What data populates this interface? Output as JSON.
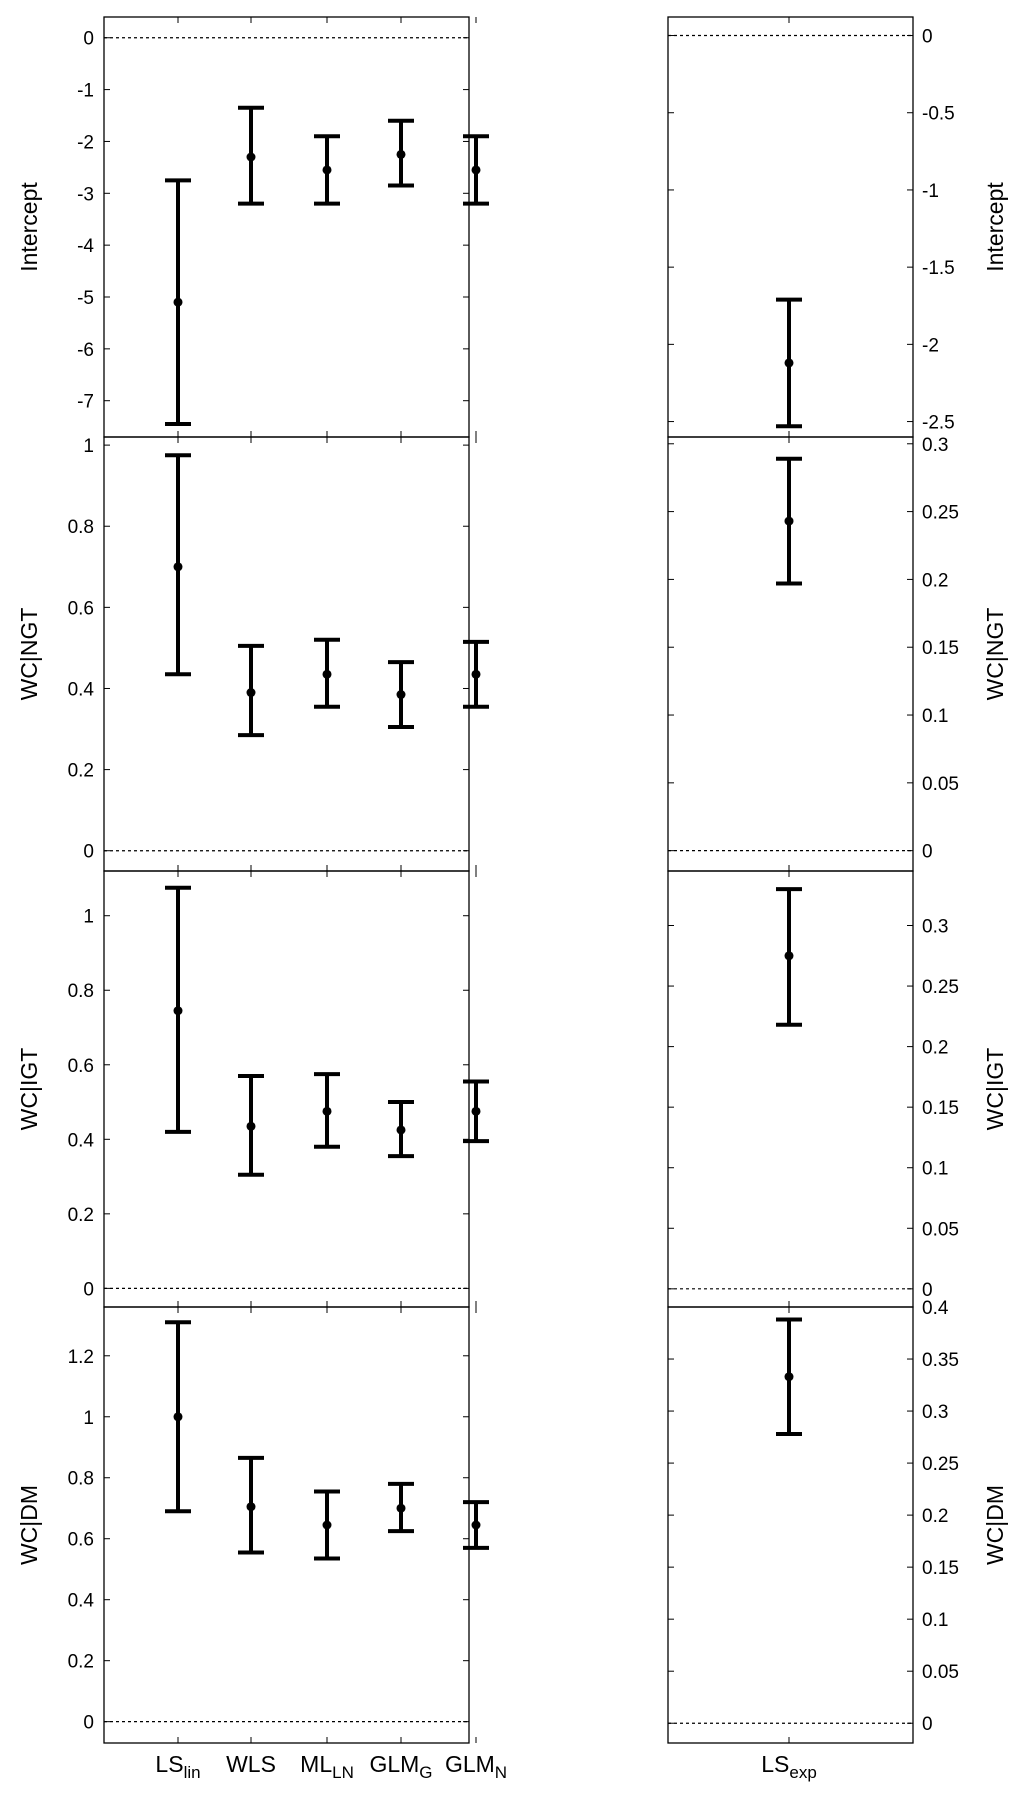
{
  "chart_data": {
    "type": "errorbar",
    "x_categories": [
      {
        "base": "LS",
        "sub": "lin"
      },
      {
        "base": "WLS",
        "sub": ""
      },
      {
        "base": "ML",
        "sub": "LN"
      },
      {
        "base": "GLM",
        "sub": "G"
      },
      {
        "base": "GLM",
        "sub": "N"
      }
    ],
    "x_category_right": {
      "base": "LS",
      "sub": "exp"
    },
    "rows": [
      {
        "ylabel": "Intercept",
        "left": {
          "ylim": [
            -7.7,
            0.4
          ],
          "ticks": [
            "0",
            "-1",
            "-2",
            "-3",
            "-4",
            "-5",
            "-6",
            "-7"
          ],
          "tick_values": [
            0,
            -1,
            -2,
            -3,
            -4,
            -5,
            -6,
            -7
          ],
          "estimates": [
            -5.1,
            -2.3,
            -2.55,
            -2.25,
            -2.55
          ],
          "lower": [
            -7.45,
            -3.2,
            -3.2,
            -2.85,
            -3.2
          ],
          "upper": [
            -2.75,
            -1.35,
            -1.9,
            -1.6,
            -1.9
          ]
        },
        "right": {
          "ylim": [
            -2.6,
            0.12
          ],
          "ticks": [
            "0",
            "-0.5",
            "-1",
            "-1.5",
            "-2",
            "-2.5"
          ],
          "tick_values": [
            0,
            -0.5,
            -1,
            -1.5,
            -2,
            -2.5
          ],
          "estimate": -2.12,
          "lower": -2.53,
          "upper": -1.71
        }
      },
      {
        "ylabel": "WC|NGT",
        "left": {
          "ylim": [
            -0.05,
            1.02
          ],
          "ticks": [
            "0",
            "0.2",
            "0.4",
            "0.6",
            "0.8",
            "1"
          ],
          "tick_values": [
            0,
            0.2,
            0.4,
            0.6,
            0.8,
            1
          ],
          "estimates": [
            0.7,
            0.39,
            0.435,
            0.385,
            0.435
          ],
          "lower": [
            0.435,
            0.285,
            0.355,
            0.305,
            0.355
          ],
          "upper": [
            0.975,
            0.505,
            0.52,
            0.465,
            0.515
          ]
        },
        "right": {
          "ylim": [
            -0.015,
            0.305
          ],
          "ticks": [
            "0",
            "0.05",
            "0.1",
            "0.15",
            "0.2",
            "0.25",
            "0.3"
          ],
          "tick_values": [
            0,
            0.05,
            0.1,
            0.15,
            0.2,
            0.25,
            0.3
          ],
          "estimate": 0.243,
          "lower": 0.197,
          "upper": 0.289
        }
      },
      {
        "ylabel": "WC|IGT",
        "left": {
          "ylim": [
            -0.05,
            1.12
          ],
          "ticks": [
            "0",
            "0.2",
            "0.4",
            "0.6",
            "0.8",
            "1"
          ],
          "tick_values": [
            0,
            0.2,
            0.4,
            0.6,
            0.8,
            1
          ],
          "estimates": [
            0.745,
            0.435,
            0.475,
            0.425,
            0.475
          ],
          "lower": [
            0.42,
            0.305,
            0.38,
            0.355,
            0.395
          ],
          "upper": [
            1.075,
            0.57,
            0.575,
            0.5,
            0.555
          ]
        },
        "right": {
          "ylim": [
            -0.015,
            0.345
          ],
          "ticks": [
            "0",
            "0.05",
            "0.1",
            "0.15",
            "0.2",
            "0.25",
            "0.3"
          ],
          "tick_values": [
            0,
            0.05,
            0.1,
            0.15,
            0.2,
            0.25,
            0.3
          ],
          "estimate": 0.275,
          "lower": 0.218,
          "upper": 0.33
        }
      },
      {
        "ylabel": "WC|DM",
        "left": {
          "ylim": [
            -0.07,
            1.36
          ],
          "ticks": [
            "0",
            "0.2",
            "0.4",
            "0.6",
            "0.8",
            "1",
            "1.2"
          ],
          "tick_values": [
            0,
            0.2,
            0.4,
            0.6,
            0.8,
            1,
            1.2
          ],
          "estimates": [
            1.0,
            0.705,
            0.645,
            0.7,
            0.645
          ],
          "lower": [
            0.69,
            0.555,
            0.535,
            0.625,
            0.57
          ],
          "upper": [
            1.31,
            0.865,
            0.755,
            0.78,
            0.72
          ]
        },
        "right": {
          "ylim": [
            -0.019,
            0.4
          ],
          "ticks": [
            "0",
            "0.05",
            "0.1",
            "0.15",
            "0.2",
            "0.25",
            "0.3",
            "0.35",
            "0.4"
          ],
          "tick_values": [
            0,
            0.05,
            0.1,
            0.15,
            0.2,
            0.25,
            0.3,
            0.35,
            0.4
          ],
          "estimate": 0.333,
          "lower": 0.278,
          "upper": 0.388
        }
      }
    ],
    "grid": false,
    "zero_line": "dotted"
  }
}
